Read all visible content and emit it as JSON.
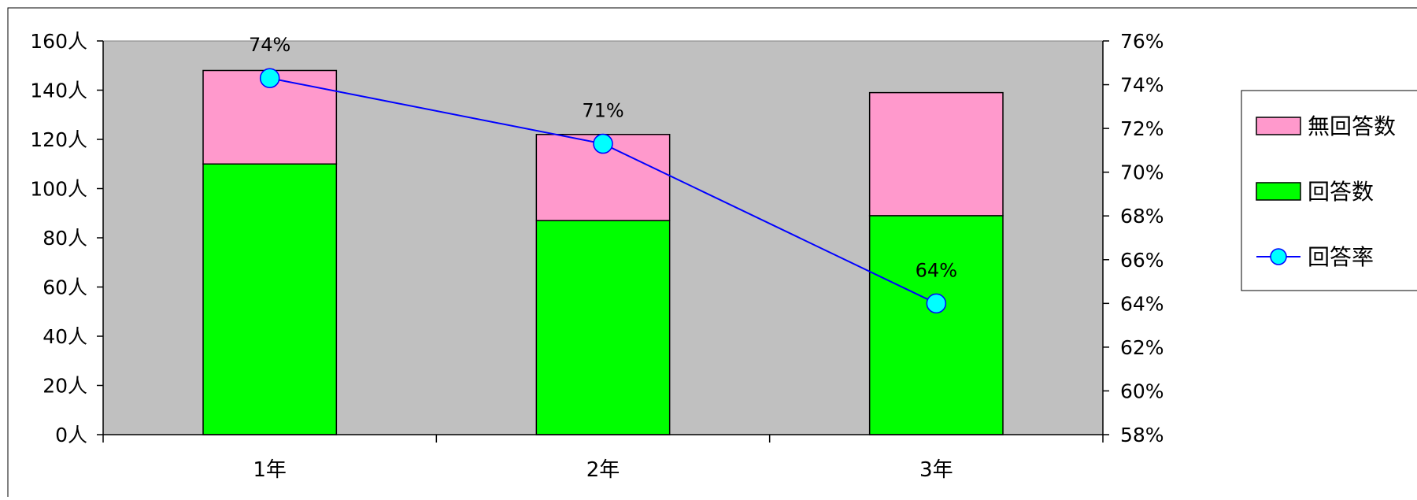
{
  "chart_data": {
    "type": "bar",
    "stacked": true,
    "categories": [
      "1年",
      "2年",
      "3年"
    ],
    "series": [
      {
        "name": "回答数",
        "axis": "left",
        "color": "#00ff00",
        "values": [
          110,
          87,
          89
        ]
      },
      {
        "name": "無回答数",
        "axis": "left",
        "color": "#ff99cc",
        "values": [
          38,
          35,
          50
        ]
      },
      {
        "name": "回答率",
        "type": "line",
        "axis": "right",
        "color": "#0000ff",
        "marker_color": "#00ffff",
        "values": [
          74.3,
          71.3,
          64.0
        ],
        "data_labels": [
          "74%",
          "71%",
          "64%"
        ]
      }
    ],
    "y_left": {
      "min": 0,
      "max": 160,
      "step": 20,
      "unit": "人",
      "tick_labels": [
        "0人",
        "20人",
        "40人",
        "60人",
        "80人",
        "100人",
        "120人",
        "140人",
        "160人"
      ]
    },
    "y_right": {
      "min": 58,
      "max": 76,
      "step": 2,
      "unit": "%",
      "tick_labels": [
        "58%",
        "60%",
        "62%",
        "64%",
        "66%",
        "68%",
        "70%",
        "72%",
        "74%",
        "76%"
      ]
    },
    "legend": {
      "placement": "right",
      "items": [
        {
          "label": "無回答数",
          "kind": "box",
          "color": "#ff99cc"
        },
        {
          "label": "回答数",
          "kind": "box",
          "color": "#00ff00"
        },
        {
          "label": "回答率",
          "kind": "line",
          "color": "#0000ff",
          "marker_color": "#00ffff"
        }
      ]
    },
    "plot_background": "#c0c0c0",
    "grid": false
  }
}
